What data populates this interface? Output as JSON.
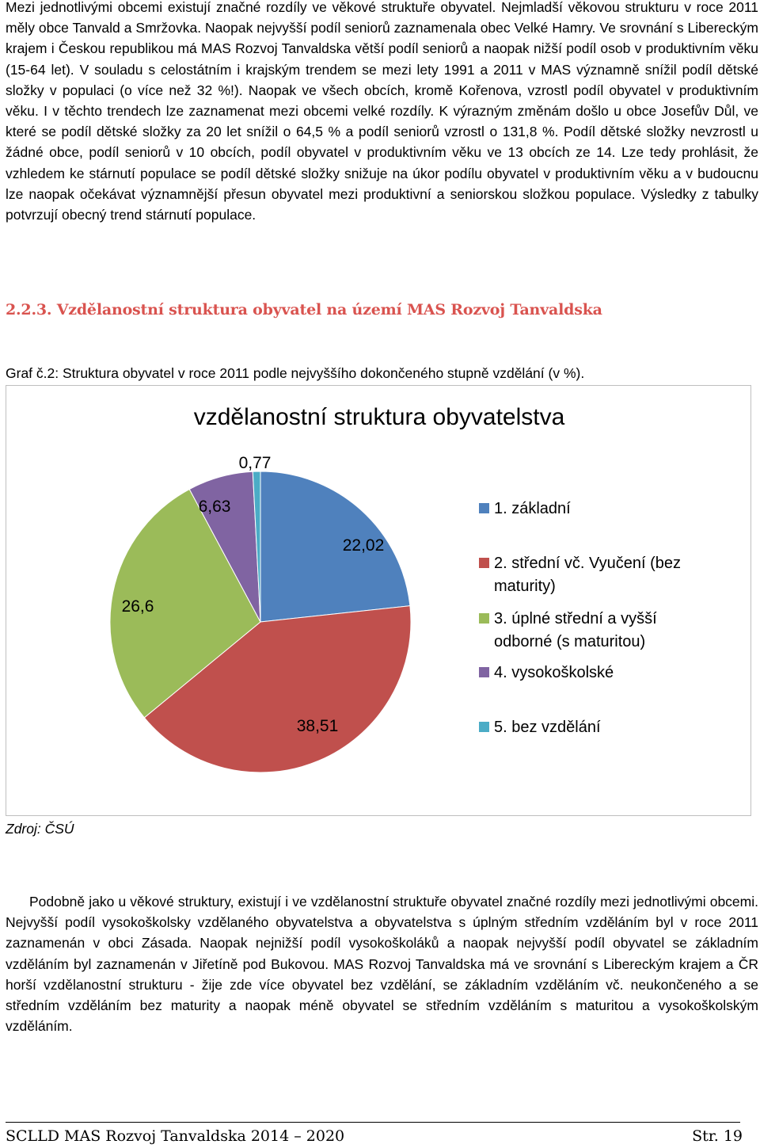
{
  "paragraph_1": "Mezi jednotlivými obcemi existují značné rozdíly ve věkové struktuře obyvatel. Nejmladší věkovou strukturu v roce 2011 měly obce Tanvald a Smržovka. Naopak nejvyšší podíl seniorů zaznamenala obec Velké Hamry. Ve srovnání s Libereckým krajem i Českou republikou má MAS Rozvoj Tanvaldska větší podíl seniorů a naopak nižší podíl osob v produktivním věku (15-64 let). V souladu s celostátním i krajským trendem se mezi lety 1991 a 2011 v MAS významně snížil podíl dětské složky v populaci (o více než 32 %!). Naopak ve všech obcích, kromě Kořenova, vzrostl podíl obyvatel v produktivním věku. I v těchto trendech lze zaznamenat mezi obcemi velké rozdíly. K výrazným změnám došlo u obce Josefův Důl, ve které se podíl dětské složky za 20 let snížil o 64,5 % a podíl seniorů vzrostl o 131,8 %.  Podíl dětské složky nevzrostl u žádné obce, podíl seniorů v 10 obcích, podíl obyvatel v produktivním věku ve 13 obcích ze 14. Lze tedy prohlásit, že vzhledem ke stárnutí populace se podíl dětské složky snižuje na úkor podílu obyvatel v produktivním věku a v budoucnu lze naopak očekávat významnější přesun obyvatel mezi produktivní a seniorskou složkou populace. Výsledky z tabulky potvrzují obecný trend stárnutí populace.",
  "section_heading": "2.2.3. Vzdělanostní struktura obyvatel na území MAS Rozvoj Tanvaldska",
  "figure_caption": "Graf  č.2: Struktura obyvatel v roce 2011 podle nejvyššího dokončeného stupně vzdělání (v %).",
  "source_note": "Zdroj: ČSÚ",
  "paragraph_2": "Podobně jako u věkové struktury, existují i ve vzdělanostní struktuře obyvatel značné rozdíly mezi jednotlivými obcemi. Nejvyšší podíl vysokoškolsky vzdělaného obyvatelstva a obyvatelstva s úplným středním vzděláním byl v roce 2011 zaznamenán v obci Zásada. Naopak nejnižší podíl vysokoškoláků a naopak nejvyšší podíl obyvatel se základním vzděláním byl zaznamenán v Jiřetíně pod Bukovou. MAS Rozvoj Tanvaldska má ve srovnání s Libereckým krajem a ČR horší vzdělanostní strukturu - žije zde více obyvatel bez vzdělání, se základním vzděláním vč. neukončeného a se středním vzděláním bez maturity a naopak méně obyvatel se středním vzděláním s maturitou a vysokoškolským vzděláním.",
  "footer": {
    "left": "SCLLD  MAS Rozvoj Tanvaldska 2014 – 2020",
    "right": "Str. 19"
  },
  "chart_data": {
    "type": "pie",
    "title": "vzdělanostní struktura obyvatelstva",
    "unit": "%",
    "legend_position": "right",
    "categories": [
      "1. základní",
      "2. střední vč. Vyučení (bez maturity)",
      "3. úplné střední a vyšší odborné (s maturitou)",
      "4. vysokoškolské",
      "5. bez vzdělání"
    ],
    "values": [
      22.02,
      38.51,
      26.6,
      6.63,
      0.77
    ],
    "data_labels": [
      "22,02",
      "38,51",
      "26,6",
      "6,63",
      "0,77"
    ],
    "colors": [
      "#4f81bd",
      "#c0504d",
      "#9bbb59",
      "#8064a2",
      "#4bacc6"
    ]
  }
}
